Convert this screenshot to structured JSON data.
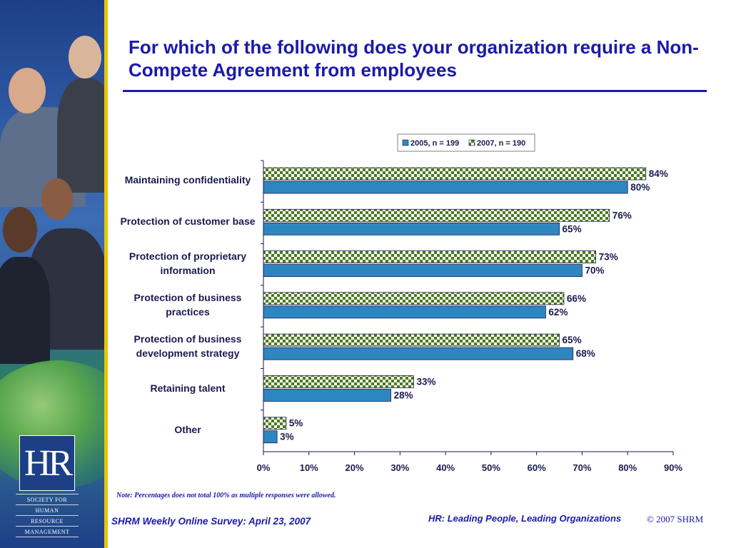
{
  "slide": {
    "title": "For which of the following does your organization require a Non-Compete Agreement from employees",
    "note": "Note: Percentages does not total 100% as multiple responses were allowed.",
    "footer_left": "SHRM Weekly Online Survey: April 23, 2007",
    "footer_right": "HR: Leading People, Leading Organizations",
    "copyright": "© 2007 SHRM"
  },
  "logo": {
    "mark": "HR",
    "words": [
      "SOCIETY FOR",
      "HUMAN",
      "RESOURCE",
      "MANAGEMENT"
    ]
  },
  "colors": {
    "title": "#1a1aaa",
    "series_2005": "#2e86c1",
    "series_2007_check": "#4a7a1e",
    "accent_bar": "#e8c400"
  },
  "chart_data": {
    "type": "bar",
    "orientation": "horizontal",
    "categories": [
      "Maintaining confidentiality",
      "Protection of customer base",
      "Protection of proprietary information",
      "Protection of business practices",
      "Protection of business development strategy",
      "Retaining talent",
      "Other"
    ],
    "category_lines": [
      [
        "Maintaining confidentiality"
      ],
      [
        "Protection of customer base"
      ],
      [
        "Protection of proprietary",
        "information"
      ],
      [
        "Protection of business",
        "practices"
      ],
      [
        "Protection of business",
        "development strategy"
      ],
      [
        "Retaining talent"
      ],
      [
        "Other"
      ]
    ],
    "series": [
      {
        "name": "2005, n = 199",
        "values": [
          80,
          65,
          70,
          62,
          68,
          28,
          3
        ],
        "pattern": "solid"
      },
      {
        "name": "2007, n = 190",
        "values": [
          84,
          76,
          73,
          66,
          65,
          33,
          5
        ],
        "pattern": "checkered"
      }
    ],
    "value_suffix": "%",
    "xlim": [
      0,
      90
    ],
    "xticks": [
      0,
      10,
      20,
      30,
      40,
      50,
      60,
      70,
      80,
      90
    ],
    "tick_suffix": "%",
    "grid": false,
    "legend_position": "top-right"
  }
}
